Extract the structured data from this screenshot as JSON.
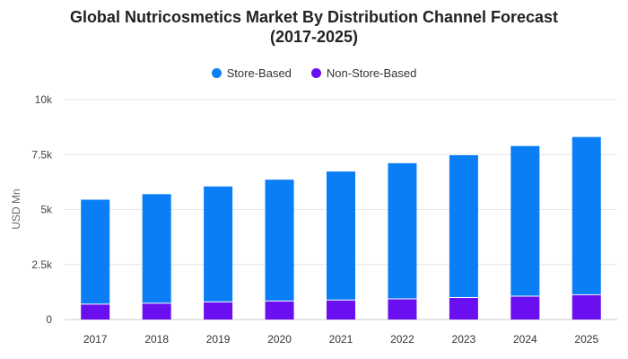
{
  "chart_data": {
    "type": "bar",
    "stacked": true,
    "title_line1": "Global Nutricosmetics Market By Distribution Channel Forecast",
    "title_line2": "(2017-2025)",
    "xlabel": "",
    "ylabel": "USD Mn",
    "categories": [
      "2017",
      "2018",
      "2019",
      "2020",
      "2021",
      "2022",
      "2023",
      "2024",
      "2025"
    ],
    "series": [
      {
        "name": "Non-Store-Based",
        "color": "#6a0ff0",
        "values": [
          700,
          740,
          800,
          840,
          890,
          940,
          1000,
          1060,
          1130
        ]
      },
      {
        "name": "Store-Based",
        "color": "#0a7ef5",
        "values": [
          4750,
          4960,
          5250,
          5520,
          5840,
          6170,
          6470,
          6830,
          7170
        ]
      }
    ],
    "ylim": [
      0,
      10000
    ],
    "yticks": [
      {
        "value": 0,
        "label": "0"
      },
      {
        "value": 2500,
        "label": "2.5k"
      },
      {
        "value": 5000,
        "label": "5k"
      },
      {
        "value": 7500,
        "label": "7.5k"
      },
      {
        "value": 10000,
        "label": "10k"
      }
    ],
    "grid": true,
    "legend_position": "top-center"
  }
}
